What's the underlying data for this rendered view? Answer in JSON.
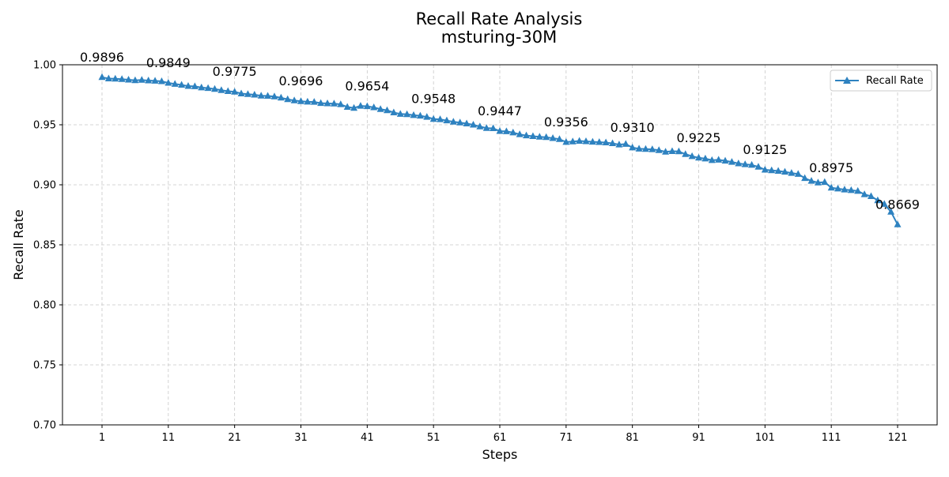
{
  "chart_data": {
    "type": "line",
    "title": "Recall Rate Analysis",
    "subtitle": "msturing-30M",
    "xlabel": "Steps",
    "ylabel": "Recall Rate",
    "xlim": [
      1,
      121
    ],
    "ylim": [
      0.7,
      1.0
    ],
    "x_ticks": [
      "1",
      "11",
      "21",
      "31",
      "41",
      "51",
      "61",
      "71",
      "81",
      "91",
      "101",
      "111",
      "121"
    ],
    "y_ticks": [
      "0.70",
      "0.75",
      "0.80",
      "0.85",
      "0.90",
      "0.95",
      "1.00"
    ],
    "grid": true,
    "legend": "top-right",
    "series": [
      {
        "name": "Recall Rate",
        "color": "#2e82c0",
        "marker": "triangle",
        "x": [
          1,
          2,
          3,
          4,
          5,
          6,
          7,
          8,
          9,
          10,
          11,
          12,
          13,
          14,
          15,
          16,
          17,
          18,
          19,
          20,
          21,
          22,
          23,
          24,
          25,
          26,
          27,
          28,
          29,
          30,
          31,
          32,
          33,
          34,
          35,
          36,
          37,
          38,
          39,
          40,
          41,
          42,
          43,
          44,
          45,
          46,
          47,
          48,
          49,
          50,
          51,
          52,
          53,
          54,
          55,
          56,
          57,
          58,
          59,
          60,
          61,
          62,
          63,
          64,
          65,
          66,
          67,
          68,
          69,
          70,
          71,
          72,
          73,
          74,
          75,
          76,
          77,
          78,
          79,
          80,
          81,
          82,
          83,
          84,
          85,
          86,
          87,
          88,
          89,
          90,
          91,
          92,
          93,
          94,
          95,
          96,
          97,
          98,
          99,
          100,
          101,
          102,
          103,
          104,
          105,
          106,
          107,
          108,
          109,
          110,
          111,
          112,
          113,
          114,
          115,
          116,
          117,
          118,
          119,
          120,
          121
        ],
        "values": [
          0.9896,
          0.9885,
          0.9883,
          0.988,
          0.9875,
          0.987,
          0.9873,
          0.9868,
          0.9866,
          0.9862,
          0.9849,
          0.984,
          0.9832,
          0.9822,
          0.982,
          0.981,
          0.9805,
          0.9798,
          0.9788,
          0.978,
          0.9775,
          0.976,
          0.9755,
          0.975,
          0.9742,
          0.974,
          0.9735,
          0.9725,
          0.9712,
          0.9702,
          0.9696,
          0.9692,
          0.969,
          0.968,
          0.9678,
          0.9676,
          0.967,
          0.9648,
          0.964,
          0.9657,
          0.9654,
          0.9645,
          0.963,
          0.962,
          0.9602,
          0.959,
          0.9587,
          0.958,
          0.9575,
          0.9565,
          0.9548,
          0.9545,
          0.9535,
          0.9525,
          0.9518,
          0.951,
          0.95,
          0.9485,
          0.9472,
          0.947,
          0.9447,
          0.9445,
          0.9435,
          0.942,
          0.941,
          0.9405,
          0.94,
          0.9396,
          0.9388,
          0.938,
          0.9356,
          0.936,
          0.9365,
          0.9362,
          0.9358,
          0.9355,
          0.9352,
          0.9345,
          0.9335,
          0.934,
          0.931,
          0.93,
          0.9298,
          0.9295,
          0.9288,
          0.9275,
          0.928,
          0.9278,
          0.9255,
          0.9238,
          0.9225,
          0.9218,
          0.9205,
          0.9208,
          0.92,
          0.919,
          0.9178,
          0.917,
          0.9165,
          0.915,
          0.9125,
          0.912,
          0.9115,
          0.9108,
          0.9098,
          0.909,
          0.9055,
          0.9032,
          0.9018,
          0.9022,
          0.8975,
          0.8968,
          0.896,
          0.8955,
          0.8948,
          0.892,
          0.8905,
          0.887,
          0.884,
          0.8775,
          0.8669
        ]
      }
    ],
    "annotations": [
      {
        "x": 1,
        "y": 0.9896,
        "text": "0.9896"
      },
      {
        "x": 11,
        "y": 0.9849,
        "text": "0.9849"
      },
      {
        "x": 21,
        "y": 0.9775,
        "text": "0.9775"
      },
      {
        "x": 31,
        "y": 0.9696,
        "text": "0.9696"
      },
      {
        "x": 41,
        "y": 0.9654,
        "text": "0.9654"
      },
      {
        "x": 51,
        "y": 0.9548,
        "text": "0.9548"
      },
      {
        "x": 61,
        "y": 0.9447,
        "text": "0.9447"
      },
      {
        "x": 71,
        "y": 0.9356,
        "text": "0.9356"
      },
      {
        "x": 81,
        "y": 0.931,
        "text": "0.9310"
      },
      {
        "x": 91,
        "y": 0.9225,
        "text": "0.9225"
      },
      {
        "x": 101,
        "y": 0.9125,
        "text": "0.9125"
      },
      {
        "x": 111,
        "y": 0.8975,
        "text": "0.8975"
      },
      {
        "x": 121,
        "y": 0.8669,
        "text": "0.8669"
      }
    ]
  }
}
